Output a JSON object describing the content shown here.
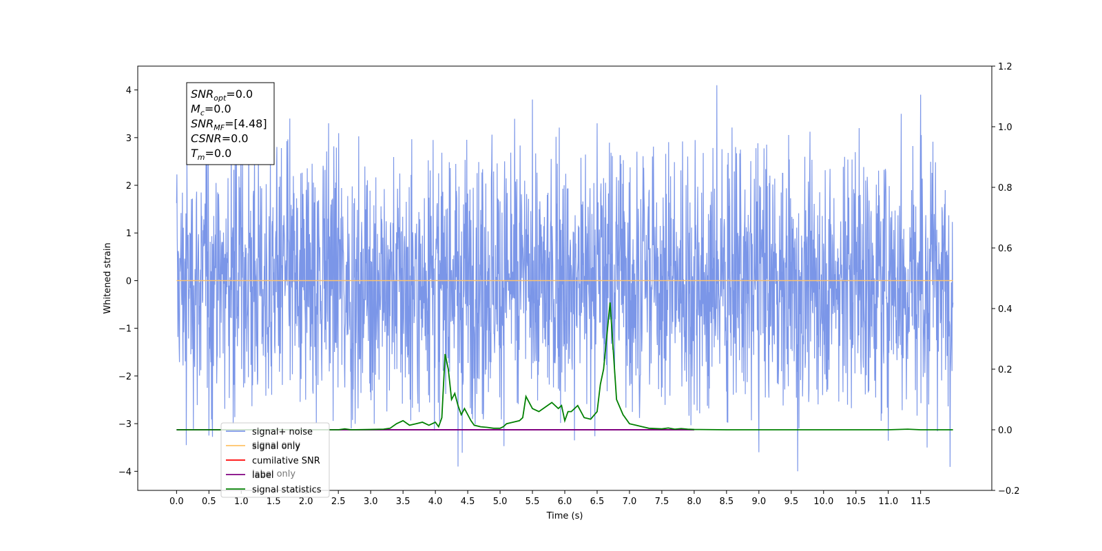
{
  "chart_data": {
    "type": "line",
    "xlabel": "Time (s)",
    "ylabel": "Whitened strain",
    "xlim": [
      -0.6,
      12.6
    ],
    "ylim": [
      -4.4,
      4.5
    ],
    "y2lim": [
      -0.2,
      1.2
    ],
    "x_ticks": [
      0.0,
      0.5,
      1.0,
      1.5,
      2.0,
      2.5,
      3.0,
      3.5,
      4.0,
      4.5,
      5.0,
      5.5,
      6.0,
      6.5,
      7.0,
      7.5,
      8.0,
      8.5,
      9.0,
      9.5,
      10.0,
      10.5,
      11.0,
      11.5
    ],
    "x_tick_labels": [
      "0.0",
      "0.5",
      "1.0",
      "1.5",
      "2.0",
      "2.5",
      "3.0",
      "3.5",
      "4.0",
      "4.5",
      "5.0",
      "5.5",
      "6.0",
      "6.5",
      "7.0",
      "7.5",
      "8.0",
      "8.5",
      "9.0",
      "9.5",
      "10.0",
      "10.5",
      "11.0",
      "11.5"
    ],
    "y_ticks": [
      -4,
      -3,
      -2,
      -1,
      0,
      1,
      2,
      3,
      4
    ],
    "y_tick_labels": [
      "−4",
      "−3",
      "−2",
      "−1",
      "0",
      "1",
      "2",
      "3",
      "4"
    ],
    "y2_ticks": [
      -0.2,
      0.0,
      0.2,
      0.4,
      0.6,
      0.8,
      1.0,
      1.2
    ],
    "y2_tick_labels": [
      "−0.2",
      "0.0",
      "0.2",
      "0.4",
      "0.6",
      "0.8",
      "1.0",
      "1.2"
    ],
    "legend_position": "lower-left",
    "legend": [
      {
        "label": "signal+ noise",
        "color": "#7b96e8"
      },
      {
        "label": "signal only",
        "color": "#ffc266"
      },
      {
        "label": "cumilative SNR",
        "color": "#ff0000"
      },
      {
        "label": "label",
        "color": "#800080"
      },
      {
        "label": "signal statistics",
        "color": "#008000"
      }
    ],
    "legend_hidden_text": [
      "signal only",
      "label only"
    ],
    "annotation_lines": [
      {
        "sym": "SNR",
        "sub": "opt",
        "rest": "=0.0"
      },
      {
        "sym": "M",
        "sub": "c",
        "rest": "=0.0"
      },
      {
        "sym": "SNR",
        "sub": "MF",
        "rest": "=[4.48]"
      },
      {
        "sym": "CSNR",
        "sub": "",
        "rest": "=0.0"
      },
      {
        "sym": "T",
        "sub": "m",
        "rest": "=0.0"
      }
    ],
    "series": [
      {
        "name": "signal+ noise",
        "axis": "left",
        "color": "#7b96e8",
        "x_range": [
          0.0,
          12.0
        ],
        "band_lower": -1.9,
        "band_upper": 1.9,
        "envelope_lower": -4.0,
        "envelope_upper": 4.1,
        "spikes": [
          {
            "x": 1.75,
            "y": 3.4
          },
          {
            "x": 5.5,
            "y": 3.8
          },
          {
            "x": 8.35,
            "y": 4.1
          },
          {
            "x": 11.5,
            "y": 3.9
          },
          {
            "x": 2.35,
            "y": 3.3
          },
          {
            "x": 6.5,
            "y": 3.3
          },
          {
            "x": 10.55,
            "y": 3.2
          },
          {
            "x": 11.2,
            "y": 3.5
          },
          {
            "x": 0.15,
            "y": -3.45
          },
          {
            "x": 4.35,
            "y": -3.9
          },
          {
            "x": 6.15,
            "y": -3.35
          },
          {
            "x": 9.6,
            "y": -4.0
          },
          {
            "x": 9.0,
            "y": -3.6
          },
          {
            "x": 11.6,
            "y": -3.5
          },
          {
            "x": 0.5,
            "y": -3.25
          },
          {
            "x": 2.7,
            "y": -3.1
          }
        ]
      },
      {
        "name": "signal only",
        "axis": "left",
        "color": "#ffc266",
        "x": [
          0.0,
          12.0
        ],
        "y": [
          0.0,
          0.0
        ]
      },
      {
        "name": "label",
        "axis": "right",
        "color": "#800080",
        "x": [
          0.0,
          8.0
        ],
        "y": [
          0.0,
          0.0
        ]
      },
      {
        "name": "signal statistics",
        "axis": "right",
        "color": "#008000",
        "x": [
          0.0,
          0.5,
          1.0,
          1.5,
          2.0,
          2.5,
          2.6,
          2.7,
          3.0,
          3.2,
          3.3,
          3.4,
          3.5,
          3.6,
          3.7,
          3.8,
          3.9,
          4.0,
          4.05,
          4.1,
          4.15,
          4.2,
          4.25,
          4.3,
          4.35,
          4.4,
          4.45,
          4.5,
          4.55,
          4.6,
          4.7,
          4.8,
          4.9,
          5.0,
          5.05,
          5.1,
          5.2,
          5.3,
          5.35,
          5.4,
          5.5,
          5.6,
          5.7,
          5.8,
          5.9,
          5.95,
          6.0,
          6.05,
          6.1,
          6.2,
          6.3,
          6.4,
          6.5,
          6.55,
          6.6,
          6.7,
          6.8,
          6.9,
          7.0,
          7.1,
          7.2,
          7.3,
          7.5,
          7.6,
          7.7,
          7.8,
          7.9,
          8.0,
          8.5,
          9.0,
          10.0,
          11.0,
          11.3,
          11.5,
          12.0
        ],
        "y": [
          0.0,
          0.0,
          0.0,
          0.0,
          0.0,
          0.0,
          0.003,
          0.0,
          0.001,
          0.002,
          0.005,
          0.02,
          0.03,
          0.015,
          0.02,
          0.025,
          0.015,
          0.025,
          0.01,
          0.04,
          0.25,
          0.2,
          0.1,
          0.12,
          0.08,
          0.05,
          0.07,
          0.05,
          0.03,
          0.015,
          0.01,
          0.008,
          0.005,
          0.005,
          0.01,
          0.02,
          0.025,
          0.03,
          0.04,
          0.11,
          0.07,
          0.06,
          0.075,
          0.09,
          0.07,
          0.08,
          0.03,
          0.06,
          0.06,
          0.08,
          0.04,
          0.035,
          0.06,
          0.15,
          0.2,
          0.42,
          0.1,
          0.05,
          0.02,
          0.015,
          0.01,
          0.005,
          0.003,
          0.006,
          0.002,
          0.004,
          0.002,
          0.001,
          0.0,
          0.0,
          0.0,
          0.0,
          0.002,
          0.0,
          0.0
        ]
      }
    ]
  }
}
